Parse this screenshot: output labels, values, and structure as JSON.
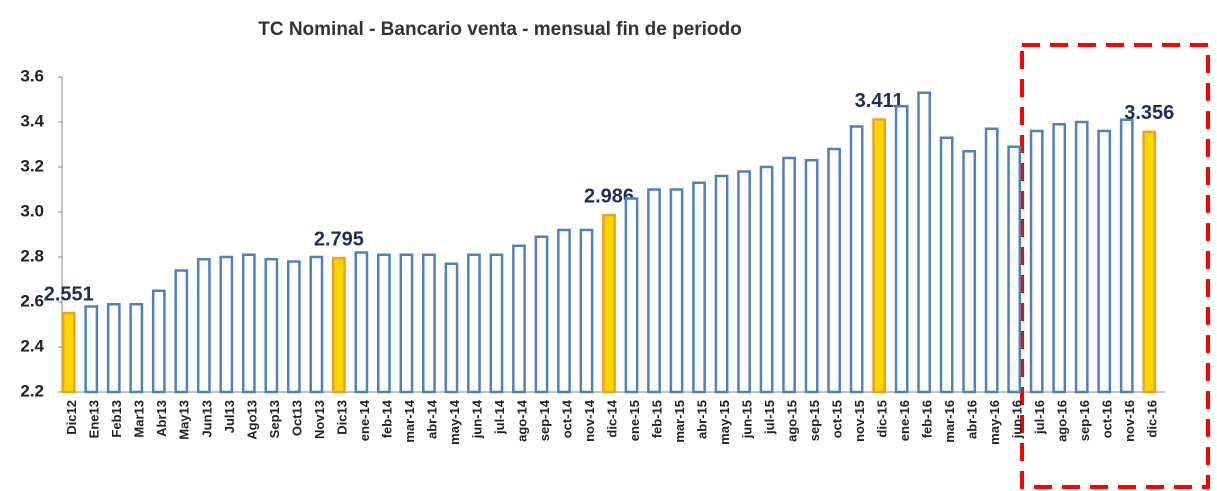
{
  "chart_data": {
    "type": "bar",
    "title": "TC Nominal - Bancario venta - mensual fin de periodo",
    "categories": [
      "Dic12",
      "Ene13",
      "Feb13",
      "Mar13",
      "Abr13",
      "May13",
      "Jun13",
      "Jul13",
      "Ago13",
      "Sep13",
      "Oct13",
      "Nov13",
      "Dic13",
      "ene-14",
      "feb-14",
      "mar-14",
      "abr-14",
      "may-14",
      "jun-14",
      "jul-14",
      "ago-14",
      "sep-14",
      "oct-14",
      "nov-14",
      "dic-14",
      "ene-15",
      "feb-15",
      "mar-15",
      "abr-15",
      "may-15",
      "jun-15",
      "jul-15",
      "ago-15",
      "sep-15",
      "oct-15",
      "nov-15",
      "dic-15",
      "ene-16",
      "feb-16",
      "mar-16",
      "abr-16",
      "may-16",
      "jun-16",
      "jul-16",
      "ago-16",
      "sep-16",
      "oct-16",
      "nov-16",
      "dic-16"
    ],
    "values": [
      2.551,
      2.58,
      2.59,
      2.59,
      2.65,
      2.74,
      2.79,
      2.8,
      2.81,
      2.79,
      2.78,
      2.8,
      2.795,
      2.82,
      2.81,
      2.81,
      2.81,
      2.77,
      2.81,
      2.81,
      2.85,
      2.89,
      2.92,
      2.92,
      2.986,
      3.06,
      3.1,
      3.1,
      3.13,
      3.16,
      3.18,
      3.2,
      3.24,
      3.23,
      3.28,
      3.38,
      3.411,
      3.47,
      3.53,
      3.33,
      3.27,
      3.37,
      3.29,
      3.36,
      3.39,
      3.4,
      3.36,
      3.41,
      3.356
    ],
    "value_labels": [
      "2.551",
      null,
      null,
      null,
      null,
      null,
      null,
      null,
      null,
      null,
      null,
      null,
      "2.795",
      null,
      null,
      null,
      null,
      null,
      null,
      null,
      null,
      null,
      null,
      null,
      "2.986",
      null,
      null,
      null,
      null,
      null,
      null,
      null,
      null,
      null,
      null,
      null,
      "3.411",
      null,
      null,
      null,
      null,
      null,
      null,
      null,
      null,
      null,
      null,
      null,
      "3.356"
    ],
    "color": "#4f81bd",
    "highlight": [
      0,
      12,
      24,
      36,
      48
    ],
    "highlight_color": "#ffd700",
    "ylim": [
      2.2,
      3.6
    ],
    "yticks": [
      2.2,
      2.4,
      2.6,
      2.8,
      {
        "value": 3,
        "label": "3.0"
      },
      3.2,
      3.4,
      3.6
    ],
    "grid": false
  }
}
